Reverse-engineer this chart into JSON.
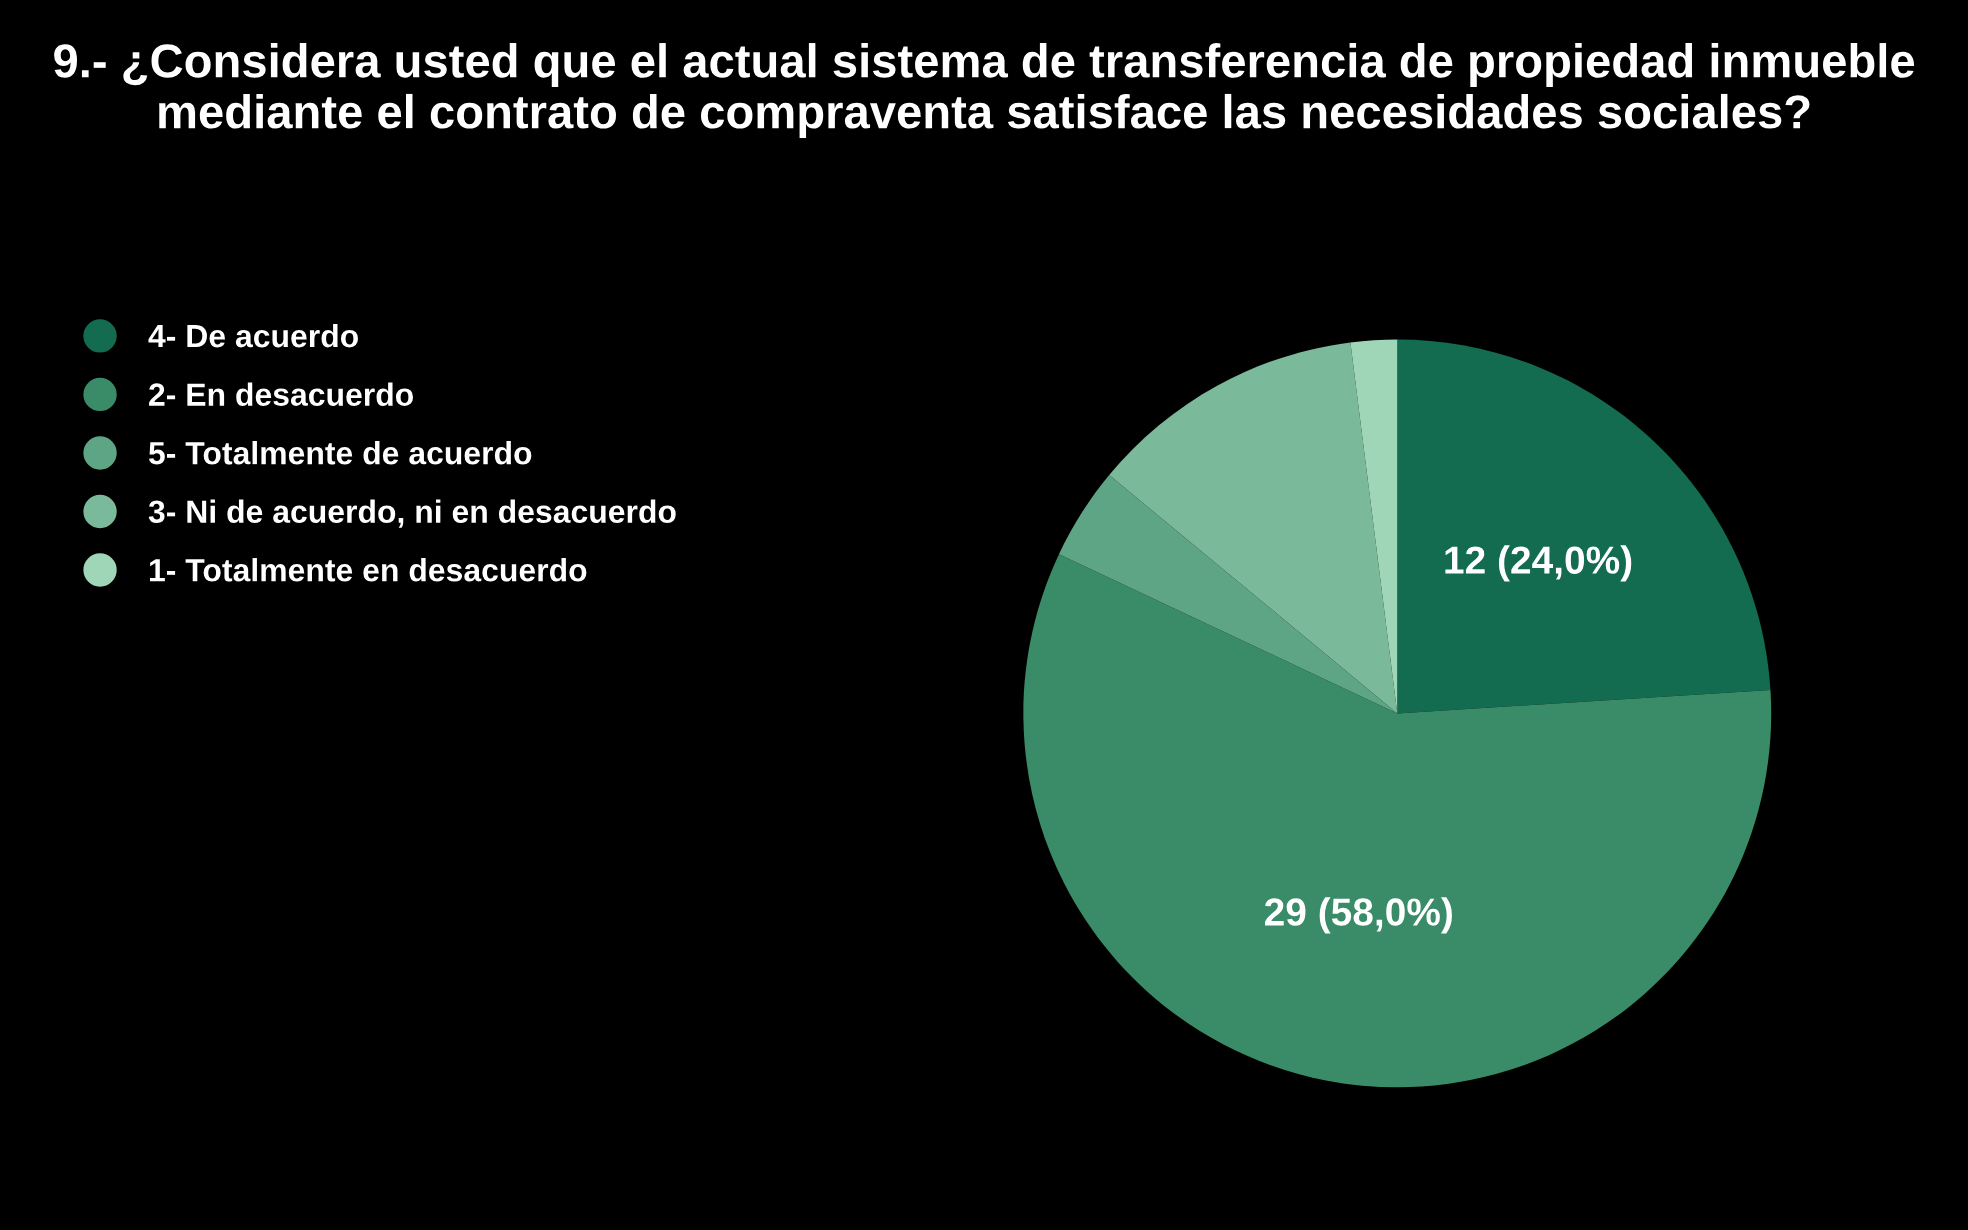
{
  "chart_data": {
    "type": "pie",
    "title": "9.- ¿Considera usted que el actual sistema de transferencia de propiedad inmueble mediante el contrato de compraventa satisface las necesidades sociales?",
    "categories": [
      "4- De acuerdo",
      "2- En desacuerdo",
      "5- Totalmente de acuerdo",
      "3- Ni de acuerdo, ni en desacuerdo",
      "1- Totalmente en desacuerdo"
    ],
    "values": [
      12,
      29,
      2,
      6,
      1
    ],
    "colors": [
      "#136b50",
      "#3a8c68",
      "#5ea585",
      "#7bb99b",
      "#a0d6b8"
    ],
    "value_labels": [
      "12 (24,0%)",
      "29 (58,0%)",
      null,
      null,
      null
    ],
    "legend": "top left"
  }
}
